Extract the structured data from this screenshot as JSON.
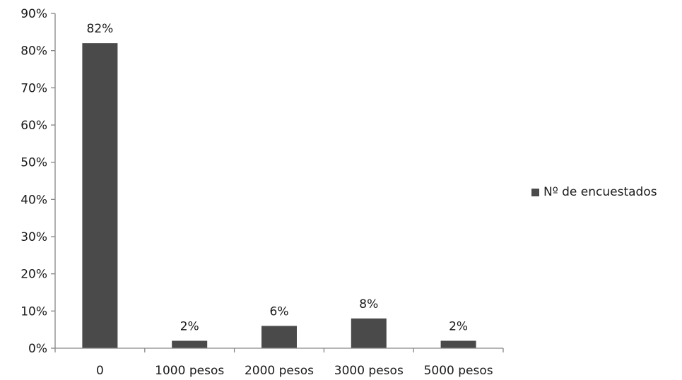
{
  "chart_data": {
    "type": "bar",
    "categories": [
      "0",
      "1000 pesos",
      "2000 pesos",
      "3000 pesos",
      "5000 pesos"
    ],
    "series": [
      {
        "name": "Nº de encuestados",
        "values": [
          82,
          2,
          6,
          8,
          2
        ],
        "data_labels": [
          "82%",
          "2%",
          "6%",
          "8%",
          "2%"
        ],
        "color": "#4a4a4a"
      }
    ],
    "y_ticks": [
      "0%",
      "10%",
      "20%",
      "30%",
      "40%",
      "50%",
      "60%",
      "70%",
      "80%",
      "90%"
    ],
    "ylim": [
      0,
      90
    ],
    "y_unit": "%",
    "title": "",
    "xlabel": "",
    "ylabel": "",
    "legend_position": "right",
    "grid": false,
    "axis_color": "#868686"
  }
}
